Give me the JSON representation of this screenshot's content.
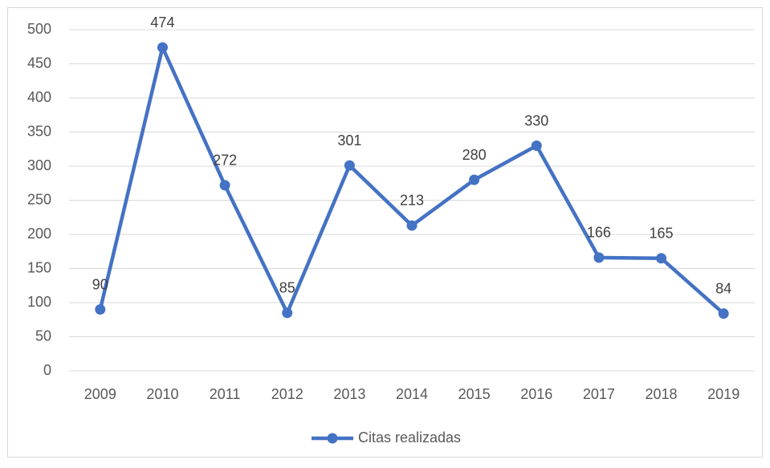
{
  "chart_data": {
    "type": "line",
    "categories": [
      "2009",
      "2010",
      "2011",
      "2012",
      "2013",
      "2014",
      "2015",
      "2016",
      "2017",
      "2018",
      "2019"
    ],
    "series": [
      {
        "name": "Citas realizadas",
        "color": "#4472c4",
        "values": [
          90,
          474,
          272,
          85,
          301,
          213,
          280,
          330,
          166,
          165,
          84
        ]
      }
    ],
    "ylim": [
      0,
      500
    ],
    "yticks": [
      0,
      50,
      100,
      150,
      200,
      250,
      300,
      350,
      400,
      450,
      500
    ],
    "grid": true,
    "data_labels": true,
    "legend": "bottom"
  }
}
